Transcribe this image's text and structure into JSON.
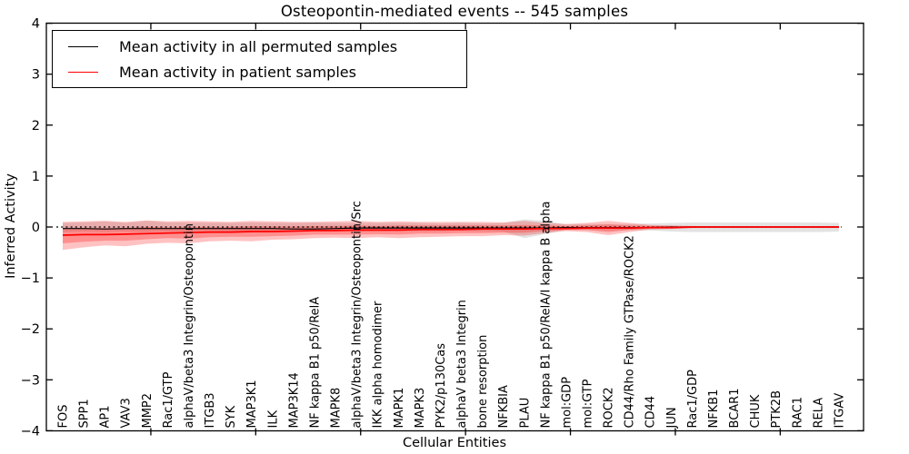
{
  "title": "Osteopontin-mediated events -- 545 samples",
  "axes": {
    "xlabel": "Cellular Entities",
    "ylabel": "Inferred Activity",
    "ytick_values": [
      4,
      3,
      2,
      1,
      0,
      -1,
      -2,
      -3,
      -4
    ],
    "ytick_labels": [
      "4",
      "3",
      "2",
      "1",
      "0",
      "−1",
      "−2",
      "−3",
      "−4"
    ]
  },
  "legend": {
    "items": [
      {
        "label": "Mean activity in all permuted samples",
        "color": "#000000"
      },
      {
        "label": "Mean activity in patient samples",
        "color": "#ff0000"
      }
    ]
  },
  "chart_data": {
    "type": "line",
    "title": "Osteopontin-mediated events -- 545 samples",
    "xlabel": "Cellular Entities",
    "ylabel": "Inferred Activity",
    "ylim": [
      -4,
      4
    ],
    "grid": false,
    "legend_position": "upper left",
    "zero_line": {
      "y": 0,
      "style": "dotted",
      "color": "#000000"
    },
    "xtick_positions": [
      4.2,
      9.2,
      14.2,
      19.2,
      24.2,
      29.2,
      34.2
    ],
    "categories": [
      "FOS",
      "SPP1",
      "AP1",
      "VAV3",
      "MMP2",
      "Rac1/GTP",
      "alphaV/beta3 Integrin/Osteopontin",
      "ITGB3",
      "SYK",
      "MAP3K1",
      "ILK",
      "MAP3K14",
      "NF kappa B1 p50/RelA",
      "MAPK8",
      "alphaV/beta3 Integrin/Osteopontin/Src",
      "IKK alpha homodimer",
      "MAPK1",
      "MAPK3",
      "PYK2/p130Cas",
      "alphaV beta3 Integrin",
      "bone resorption",
      "NFKBIA",
      "PLAU",
      "NF kappa B1 p50/RelA/I kappa B alpha",
      "mol:GDP",
      "mol:GTP",
      "ROCK2",
      "CD44/Rho Family GTPase/ROCK2",
      "CD44",
      "JUN",
      "Rac1/GDP",
      "NFKB1",
      "BCAR1",
      "CHUK",
      "PTK2B",
      "RAC1",
      "RELA",
      "ITGAV"
    ],
    "series": [
      {
        "name": "Mean activity in all permuted samples",
        "color": "#000000",
        "width": 1.2,
        "values": [
          -0.03,
          -0.03,
          -0.04,
          -0.03,
          -0.03,
          -0.03,
          -0.03,
          -0.03,
          -0.03,
          -0.03,
          -0.03,
          -0.04,
          -0.04,
          -0.03,
          -0.02,
          -0.02,
          -0.02,
          -0.02,
          -0.02,
          -0.02,
          -0.02,
          -0.02,
          -0.02,
          -0.02,
          -0.01,
          -0.01,
          -0.01,
          -0.01,
          -0.01,
          0,
          0,
          0,
          0,
          0,
          0,
          0,
          0,
          0
        ]
      },
      {
        "name": "Mean activity in patient samples",
        "color": "#ff0000",
        "width": 1.7,
        "values": [
          -0.16,
          -0.15,
          -0.15,
          -0.14,
          -0.13,
          -0.12,
          -0.11,
          -0.1,
          -0.1,
          -0.09,
          -0.09,
          -0.08,
          -0.07,
          -0.07,
          -0.06,
          -0.06,
          -0.06,
          -0.05,
          -0.05,
          -0.05,
          -0.04,
          -0.04,
          -0.04,
          -0.03,
          -0.03,
          -0.02,
          -0.02,
          -0.02,
          -0.01,
          -0.01,
          0,
          0,
          0,
          0,
          0,
          0,
          0,
          0
        ]
      }
    ],
    "bands": [
      {
        "name": "permuted-samples-band",
        "color": "rgba(0,0,0,0.11)",
        "upper": [
          0.08,
          0.09,
          0.11,
          0.08,
          0.12,
          0.09,
          0.09,
          0.08,
          0.08,
          0.09,
          0.08,
          0.08,
          0.09,
          0.08,
          0.08,
          0.08,
          0.08,
          0.08,
          0.07,
          0.08,
          0.07,
          0.08,
          0.15,
          0.12,
          0.05,
          0.06,
          0.06,
          0.06,
          0.07,
          0.08,
          0.09,
          0.09,
          0.09,
          0.09,
          0.09,
          0.09,
          0.09,
          0.08
        ],
        "lower": [
          -0.1,
          -0.09,
          -0.1,
          -0.09,
          -0.1,
          -0.09,
          -0.09,
          -0.08,
          -0.09,
          -0.08,
          -0.08,
          -0.09,
          -0.08,
          -0.08,
          -0.09,
          -0.08,
          -0.08,
          -0.08,
          -0.08,
          -0.07,
          -0.08,
          -0.09,
          -0.22,
          -0.14,
          -0.05,
          -0.06,
          -0.07,
          -0.06,
          -0.07,
          -0.09,
          -0.1,
          -0.1,
          -0.1,
          -0.1,
          -0.1,
          -0.1,
          -0.1,
          -0.09
        ]
      },
      {
        "name": "patient-samples-band-outer",
        "color": "rgba(255,0,0,0.24)",
        "upper": [
          0.1,
          0.11,
          0.12,
          0.1,
          0.13,
          0.11,
          0.12,
          0.11,
          0.1,
          0.12,
          0.11,
          0.1,
          0.1,
          0.11,
          0.12,
          0.1,
          0.11,
          0.1,
          0.1,
          0.1,
          0.1,
          0.09,
          0.12,
          0.08,
          0.06,
          0.08,
          0.12,
          0.08,
          0.04,
          0.03,
          0.02,
          0.01,
          0.01,
          0.01,
          0.01,
          0.01,
          0.01,
          0.01
        ],
        "lower": [
          -0.45,
          -0.4,
          -0.36,
          -0.38,
          -0.33,
          -0.31,
          -0.32,
          -0.28,
          -0.27,
          -0.28,
          -0.25,
          -0.24,
          -0.22,
          -0.21,
          -0.22,
          -0.2,
          -0.22,
          -0.2,
          -0.19,
          -0.18,
          -0.18,
          -0.16,
          -0.17,
          -0.12,
          -0.08,
          -0.1,
          -0.16,
          -0.1,
          -0.05,
          -0.04,
          -0.02,
          -0.01,
          -0.01,
          -0.01,
          -0.01,
          -0.01,
          -0.01,
          -0.01
        ]
      },
      {
        "name": "patient-samples-band-inner",
        "color": "rgba(255,0,0,0.26)",
        "upper": [
          -0.03,
          -0.02,
          -0.02,
          -0.02,
          0.0,
          -0.01,
          0.0,
          0.0,
          0.0,
          0.02,
          0.01,
          0.01,
          0.02,
          0.02,
          0.03,
          0.02,
          0.03,
          0.03,
          0.03,
          0.03,
          0.03,
          0.03,
          0.04,
          0.03,
          0.02,
          0.03,
          0.05,
          0.03,
          0.02,
          0.01,
          0.01,
          0.01,
          0.01,
          0.01,
          0.01,
          0.01,
          0.01,
          0.01
        ],
        "lower": [
          -0.32,
          -0.29,
          -0.27,
          -0.27,
          -0.24,
          -0.22,
          -0.23,
          -0.2,
          -0.19,
          -0.19,
          -0.18,
          -0.17,
          -0.15,
          -0.15,
          -0.15,
          -0.14,
          -0.15,
          -0.13,
          -0.13,
          -0.12,
          -0.12,
          -0.11,
          -0.11,
          -0.08,
          -0.06,
          -0.06,
          -0.1,
          -0.06,
          -0.03,
          -0.03,
          -0.02,
          -0.02,
          -0.02,
          -0.02,
          -0.02,
          -0.02,
          -0.02,
          -0.02
        ]
      }
    ]
  }
}
